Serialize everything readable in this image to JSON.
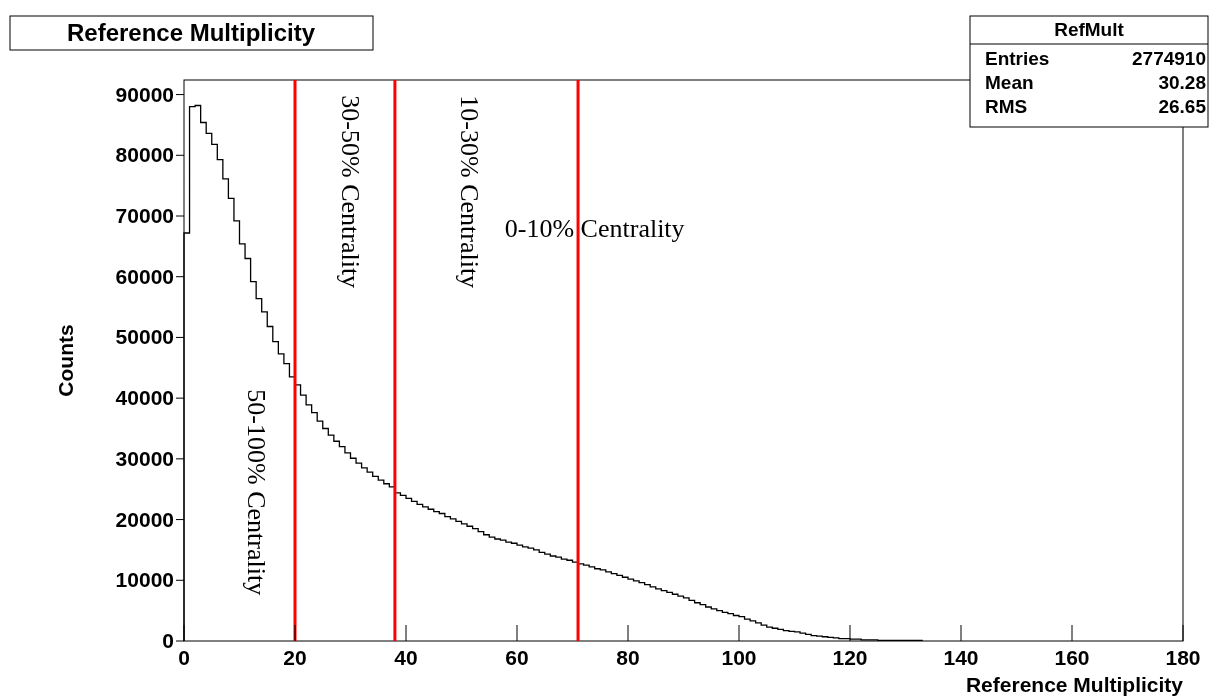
{
  "chart_data": {
    "type": "histogram",
    "title": "Reference Multiplicity",
    "xlabel": "Reference Multiplicity",
    "ylabel": "Counts",
    "bins": [
      0,
      1,
      2,
      3,
      4,
      5,
      6,
      7,
      8,
      9,
      10,
      11,
      12,
      13,
      14,
      15,
      16,
      17,
      18,
      19,
      20,
      21,
      22,
      23,
      24,
      25,
      26,
      27,
      28,
      29,
      30,
      31,
      32,
      33,
      34,
      35,
      36,
      37,
      38,
      39,
      40,
      41,
      42,
      43,
      44,
      45,
      46,
      47,
      48,
      49,
      50,
      51,
      52,
      53,
      54,
      55,
      56,
      57,
      58,
      59,
      60,
      61,
      62,
      63,
      64,
      65,
      66,
      67,
      68,
      69,
      70,
      71,
      72,
      73,
      74,
      75,
      76,
      77,
      78,
      79,
      80,
      81,
      82,
      83,
      84,
      85,
      86,
      87,
      88,
      89,
      90,
      91,
      92,
      93,
      94,
      95,
      96,
      97,
      98,
      99,
      100,
      101,
      102,
      103,
      104,
      105,
      106,
      107,
      108,
      109,
      110,
      111,
      112,
      113,
      114,
      115,
      116,
      117,
      118,
      119,
      120,
      121,
      122,
      123,
      124,
      125,
      126,
      127,
      128,
      129,
      130,
      131,
      132,
      133
    ],
    "values": [
      67200,
      88000,
      88200,
      85400,
      83600,
      81800,
      79300,
      76100,
      72900,
      69200,
      65400,
      63000,
      59200,
      56400,
      54200,
      51800,
      49300,
      47300,
      45700,
      43500,
      42200,
      40500,
      38900,
      37600,
      36200,
      35000,
      33900,
      32900,
      32000,
      31000,
      30100,
      29300,
      28500,
      27800,
      27100,
      26500,
      25900,
      25400,
      24400,
      24000,
      23500,
      23000,
      22500,
      22100,
      21700,
      21300,
      21000,
      20500,
      20100,
      19700,
      19300,
      18900,
      18500,
      18000,
      17500,
      17100,
      16800,
      16600,
      16300,
      16100,
      15800,
      15500,
      15300,
      15000,
      14600,
      14300,
      14000,
      13800,
      13500,
      13300,
      13000,
      12700,
      12500,
      12200,
      11900,
      11700,
      11400,
      11100,
      10800,
      10500,
      10200,
      9900,
      9600,
      9300,
      8900,
      8600,
      8300,
      8000,
      7700,
      7400,
      7100,
      6700,
      6300,
      6000,
      5600,
      5300,
      5000,
      4700,
      4500,
      4200,
      4000,
      3600,
      3300,
      3000,
      2600,
      2300,
      2100,
      1900,
      1700,
      1600,
      1500,
      1300,
      1100,
      900,
      800,
      700,
      600,
      500,
      400,
      400,
      300,
      300,
      200,
      200,
      200,
      100,
      100,
      100,
      100,
      100,
      100,
      100,
      100
    ],
    "color": "#000000",
    "xlim": [
      0,
      180
    ],
    "xticks": [
      0,
      20,
      40,
      60,
      80,
      100,
      120,
      140,
      160,
      180
    ],
    "ylim": [
      0,
      92400
    ],
    "yticks": [
      0,
      10000,
      20000,
      30000,
      40000,
      50000,
      60000,
      70000,
      80000,
      90000
    ],
    "grid": false,
    "ref_lines": [
      {
        "axis": "x",
        "value": 20,
        "color": "#ff0000"
      },
      {
        "axis": "x",
        "value": 38,
        "color": "#ff0000"
      },
      {
        "axis": "x",
        "value": 71,
        "color": "#ff0000"
      }
    ],
    "annotations": [
      "50-100% Centrality",
      "30-50% Centrality",
      "10-30% Centrality",
      "0-10% Centrality",
      "RefMult",
      "Entries",
      "2774910",
      "Mean",
      "30.28",
      "RMS",
      "26.65"
    ]
  }
}
